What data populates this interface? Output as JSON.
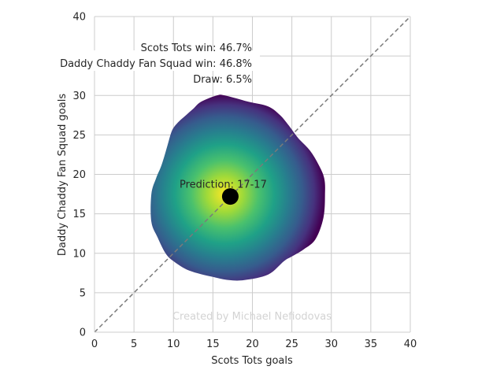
{
  "chart_data": {
    "type": "heatmap",
    "title": "",
    "xlabel": "Scots Tots goals",
    "ylabel": "Daddy Chaddy Fan Squad goals",
    "xlim": [
      0,
      40
    ],
    "ylim": [
      0,
      40
    ],
    "xticks": [
      0,
      5,
      10,
      15,
      20,
      25,
      30,
      35,
      40
    ],
    "yticks": [
      0,
      5,
      10,
      15,
      20,
      25,
      30,
      35,
      40
    ],
    "grid": true,
    "density": {
      "center": [
        16.5,
        17.5
      ],
      "outline": [
        [
          19,
          6.6
        ],
        [
          22,
          7.3
        ],
        [
          24,
          9.0
        ],
        [
          25,
          9.6
        ],
        [
          26.5,
          10.5
        ],
        [
          28,
          11.8
        ],
        [
          29,
          14.5
        ],
        [
          29.2,
          17.5
        ],
        [
          29.1,
          19.5
        ],
        [
          28.4,
          21.2
        ],
        [
          27.3,
          23.0
        ],
        [
          25.8,
          24.6
        ],
        [
          24.6,
          26.2
        ],
        [
          23.5,
          27.5
        ],
        [
          22,
          28.6
        ],
        [
          19.5,
          29.2
        ],
        [
          16.5,
          30.0
        ],
        [
          15.5,
          30.0
        ],
        [
          13.5,
          29.2
        ],
        [
          12.5,
          28.3
        ],
        [
          11.6,
          27.5
        ],
        [
          10.5,
          26.5
        ],
        [
          9.8,
          25.5
        ],
        [
          9.2,
          23.5
        ],
        [
          8.5,
          21.2
        ],
        [
          7.8,
          19.5
        ],
        [
          7.2,
          17.5
        ],
        [
          7.2,
          14.0
        ],
        [
          8.0,
          12.0
        ],
        [
          9.0,
          10.0
        ],
        [
          10.0,
          9.0
        ],
        [
          12.0,
          7.8
        ],
        [
          15.0,
          7.0
        ],
        [
          17.0,
          6.6
        ]
      ]
    },
    "reference_line": {
      "from": [
        0,
        0
      ],
      "to": [
        40,
        40
      ],
      "style": "dashed"
    },
    "prediction": {
      "x": 17.2,
      "y": 17.2,
      "label": "Prediction: 17-17"
    },
    "annotations": {
      "home_win": "Scots Tots win: 46.7%",
      "away_win": "Daddy Chaddy Fan Squad win: 46.8%",
      "draw": "Draw: 6.5%"
    },
    "watermark": "Created by Michael Nefiodovas",
    "colors": {
      "grid": "#cccccc",
      "axis": "#cccccc",
      "text": "#262626",
      "reference_line": "#7a7a7a",
      "marker": "#000000",
      "watermark": "#d3d3d3",
      "colormap": [
        "#440154",
        "#3b528b",
        "#21918c",
        "#5ec962",
        "#fde725"
      ]
    }
  }
}
